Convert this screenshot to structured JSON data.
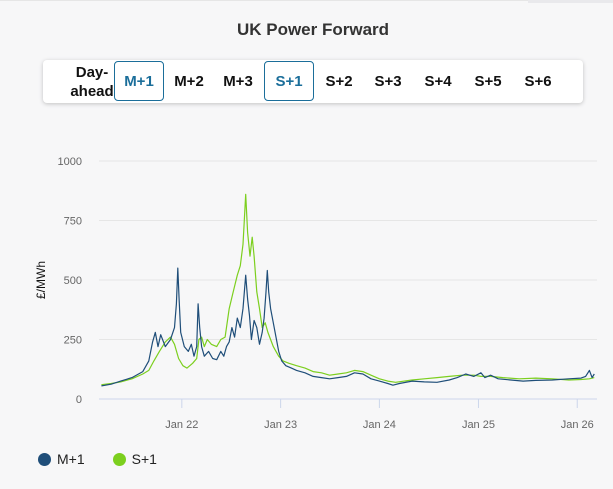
{
  "title": "UK Power Forward",
  "tabs": [
    {
      "label": "Day-ahead",
      "active": false
    },
    {
      "label": "M+1",
      "active": true
    },
    {
      "label": "M+2",
      "active": false
    },
    {
      "label": "M+3",
      "active": false
    },
    {
      "label": "S+1",
      "active": true
    },
    {
      "label": "S+2",
      "active": false
    },
    {
      "label": "S+3",
      "active": false
    },
    {
      "label": "S+4",
      "active": false
    },
    {
      "label": "S+5",
      "active": false
    },
    {
      "label": "S+6",
      "active": false
    }
  ],
  "colors": {
    "M+1": "#1f4e79",
    "S+1": "#7ccf1e",
    "accent": "#1b6e9a"
  },
  "chart_data": {
    "type": "line",
    "ylabel": "£/MWh",
    "ylim": [
      0,
      1000
    ],
    "yticks": [
      0,
      250,
      500,
      750,
      1000
    ],
    "xlim": [
      "2021-03-01",
      "2026-03-15"
    ],
    "xticks": [
      {
        "label": "Jan 22",
        "date": "2022-01-01"
      },
      {
        "label": "Jan 23",
        "date": "2023-01-01"
      },
      {
        "label": "Jan 24",
        "date": "2024-01-01"
      },
      {
        "label": "Jan 25",
        "date": "2025-01-01"
      },
      {
        "label": "Jan 26",
        "date": "2026-01-01"
      }
    ],
    "grid": true,
    "legend": "bottom-left",
    "series": [
      {
        "name": "M+1",
        "points": [
          [
            "2021-03-10",
            55
          ],
          [
            "2021-04-15",
            62
          ],
          [
            "2021-05-20",
            75
          ],
          [
            "2021-07-01",
            90
          ],
          [
            "2021-08-10",
            115
          ],
          [
            "2021-09-01",
            160
          ],
          [
            "2021-09-15",
            240
          ],
          [
            "2021-09-25",
            280
          ],
          [
            "2021-10-05",
            220
          ],
          [
            "2021-10-15",
            270
          ],
          [
            "2021-11-01",
            220
          ],
          [
            "2021-11-20",
            250
          ],
          [
            "2021-12-05",
            300
          ],
          [
            "2021-12-12",
            400
          ],
          [
            "2021-12-17",
            550
          ],
          [
            "2021-12-22",
            420
          ],
          [
            "2021-12-28",
            280
          ],
          [
            "2022-01-10",
            220
          ],
          [
            "2022-01-25",
            200
          ],
          [
            "2022-02-05",
            230
          ],
          [
            "2022-02-15",
            180
          ],
          [
            "2022-02-25",
            220
          ],
          [
            "2022-03-02",
            400
          ],
          [
            "2022-03-08",
            300
          ],
          [
            "2022-03-15",
            220
          ],
          [
            "2022-03-25",
            180
          ],
          [
            "2022-04-10",
            200
          ],
          [
            "2022-04-25",
            170
          ],
          [
            "2022-05-10",
            165
          ],
          [
            "2022-05-25",
            200
          ],
          [
            "2022-06-05",
            180
          ],
          [
            "2022-06-15",
            220
          ],
          [
            "2022-06-25",
            240
          ],
          [
            "2022-07-05",
            300
          ],
          [
            "2022-07-15",
            260
          ],
          [
            "2022-07-25",
            340
          ],
          [
            "2022-08-05",
            300
          ],
          [
            "2022-08-15",
            380
          ],
          [
            "2022-08-25",
            520
          ],
          [
            "2022-09-01",
            420
          ],
          [
            "2022-09-08",
            350
          ],
          [
            "2022-09-15",
            250
          ],
          [
            "2022-09-25",
            330
          ],
          [
            "2022-10-05",
            300
          ],
          [
            "2022-10-15",
            230
          ],
          [
            "2022-10-25",
            280
          ],
          [
            "2022-11-01",
            340
          ],
          [
            "2022-11-08",
            450
          ],
          [
            "2022-11-13",
            540
          ],
          [
            "2022-11-18",
            450
          ],
          [
            "2022-11-25",
            380
          ],
          [
            "2022-12-05",
            320
          ],
          [
            "2022-12-15",
            260
          ],
          [
            "2022-12-25",
            200
          ],
          [
            "2023-01-05",
            160
          ],
          [
            "2023-01-20",
            140
          ],
          [
            "2023-02-10",
            130
          ],
          [
            "2023-03-01",
            120
          ],
          [
            "2023-04-01",
            110
          ],
          [
            "2023-05-01",
            95
          ],
          [
            "2023-06-01",
            90
          ],
          [
            "2023-07-01",
            85
          ],
          [
            "2023-08-01",
            90
          ],
          [
            "2023-09-01",
            95
          ],
          [
            "2023-10-01",
            110
          ],
          [
            "2023-11-01",
            105
          ],
          [
            "2023-12-01",
            85
          ],
          [
            "2024-01-01",
            75
          ],
          [
            "2024-02-01",
            65
          ],
          [
            "2024-02-20",
            58
          ],
          [
            "2024-03-15",
            65
          ],
          [
            "2024-05-01",
            75
          ],
          [
            "2024-06-15",
            72
          ],
          [
            "2024-08-01",
            70
          ],
          [
            "2024-09-15",
            80
          ],
          [
            "2024-10-15",
            90
          ],
          [
            "2024-11-15",
            105
          ],
          [
            "2024-12-15",
            95
          ],
          [
            "2025-01-10",
            110
          ],
          [
            "2025-01-25",
            90
          ],
          [
            "2025-02-15",
            100
          ],
          [
            "2025-03-15",
            85
          ],
          [
            "2025-05-01",
            80
          ],
          [
            "2025-06-15",
            75
          ],
          [
            "2025-08-01",
            78
          ],
          [
            "2025-10-01",
            80
          ],
          [
            "2025-12-01",
            85
          ],
          [
            "2026-01-15",
            88
          ],
          [
            "2026-02-01",
            95
          ],
          [
            "2026-02-15",
            120
          ],
          [
            "2026-02-25",
            90
          ],
          [
            "2026-03-05",
            105
          ]
        ]
      },
      {
        "name": "S+1",
        "points": [
          [
            "2021-03-10",
            60
          ],
          [
            "2021-04-15",
            65
          ],
          [
            "2021-05-20",
            72
          ],
          [
            "2021-07-01",
            85
          ],
          [
            "2021-08-10",
            105
          ],
          [
            "2021-09-01",
            120
          ],
          [
            "2021-09-20",
            160
          ],
          [
            "2021-10-10",
            200
          ],
          [
            "2021-11-01",
            240
          ],
          [
            "2021-11-20",
            260
          ],
          [
            "2021-12-05",
            230
          ],
          [
            "2021-12-20",
            170
          ],
          [
            "2022-01-05",
            140
          ],
          [
            "2022-01-20",
            130
          ],
          [
            "2022-02-10",
            150
          ],
          [
            "2022-02-25",
            170
          ],
          [
            "2022-03-05",
            250
          ],
          [
            "2022-03-15",
            260
          ],
          [
            "2022-03-25",
            220
          ],
          [
            "2022-04-05",
            250
          ],
          [
            "2022-04-20",
            230
          ],
          [
            "2022-05-10",
            220
          ],
          [
            "2022-05-25",
            250
          ],
          [
            "2022-06-10",
            260
          ],
          [
            "2022-06-25",
            380
          ],
          [
            "2022-07-10",
            450
          ],
          [
            "2022-07-25",
            520
          ],
          [
            "2022-08-05",
            560
          ],
          [
            "2022-08-15",
            650
          ],
          [
            "2022-08-20",
            750
          ],
          [
            "2022-08-25",
            860
          ],
          [
            "2022-09-01",
            700
          ],
          [
            "2022-09-10",
            600
          ],
          [
            "2022-09-18",
            680
          ],
          [
            "2022-09-25",
            600
          ],
          [
            "2022-10-05",
            450
          ],
          [
            "2022-10-15",
            380
          ],
          [
            "2022-10-25",
            300
          ],
          [
            "2022-11-05",
            320
          ],
          [
            "2022-11-15",
            280
          ],
          [
            "2022-11-25",
            250
          ],
          [
            "2022-12-05",
            220
          ],
          [
            "2022-12-15",
            200
          ],
          [
            "2022-12-25",
            180
          ],
          [
            "2023-01-10",
            160
          ],
          [
            "2023-02-01",
            150
          ],
          [
            "2023-03-01",
            140
          ],
          [
            "2023-04-01",
            130
          ],
          [
            "2023-05-01",
            115
          ],
          [
            "2023-06-01",
            110
          ],
          [
            "2023-07-01",
            100
          ],
          [
            "2023-08-01",
            105
          ],
          [
            "2023-09-01",
            110
          ],
          [
            "2023-10-01",
            120
          ],
          [
            "2023-11-01",
            115
          ],
          [
            "2023-12-01",
            100
          ],
          [
            "2024-01-01",
            85
          ],
          [
            "2024-02-01",
            75
          ],
          [
            "2024-03-01",
            70
          ],
          [
            "2024-05-01",
            80
          ],
          [
            "2024-06-15",
            85
          ],
          [
            "2024-08-01",
            90
          ],
          [
            "2024-09-15",
            95
          ],
          [
            "2024-11-01",
            100
          ],
          [
            "2024-12-15",
            100
          ],
          [
            "2025-01-10",
            95
          ],
          [
            "2025-02-15",
            95
          ],
          [
            "2025-04-01",
            90
          ],
          [
            "2025-06-01",
            85
          ],
          [
            "2025-08-01",
            88
          ],
          [
            "2025-10-01",
            85
          ],
          [
            "2025-12-01",
            80
          ],
          [
            "2026-01-15",
            82
          ],
          [
            "2026-02-15",
            85
          ],
          [
            "2026-03-05",
            90
          ]
        ]
      }
    ]
  }
}
